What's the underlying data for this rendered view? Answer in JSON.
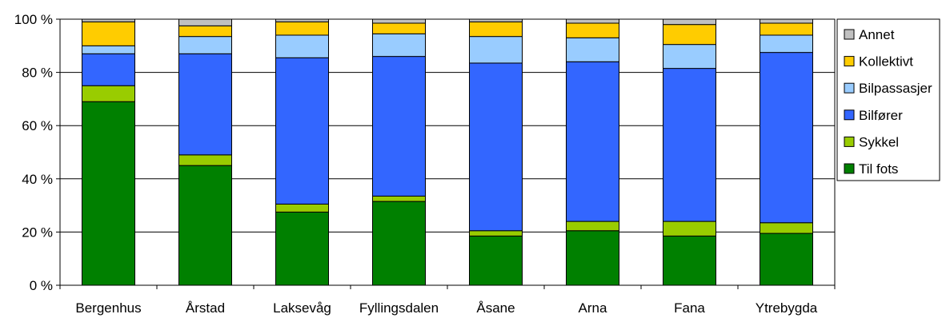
{
  "chart_data": {
    "type": "bar",
    "stacked": true,
    "percent": true,
    "title": "",
    "xlabel": "",
    "ylabel": "",
    "ylim": [
      0,
      100
    ],
    "y_ticks": [
      "0 %",
      "20 %",
      "40 %",
      "60 %",
      "80 %",
      "100 %"
    ],
    "grid": true,
    "legend": {
      "placement": "right"
    },
    "categories": [
      "Bergenhus",
      "Årstad",
      "Laksevåg",
      "Fyllingsdalen",
      "Åsane",
      "Arna",
      "Fana",
      "Ytrebygda"
    ],
    "series": [
      {
        "name": "Til fots",
        "color": "#008000",
        "values": [
          69,
          45,
          27.5,
          31.5,
          18.5,
          20.5,
          18.5,
          19.5
        ]
      },
      {
        "name": "Sykkel",
        "color": "#99cc00",
        "values": [
          6,
          4,
          3,
          2,
          2,
          3.5,
          5.5,
          4
        ]
      },
      {
        "name": "Bilfører",
        "color": "#3366ff",
        "values": [
          12,
          38,
          55,
          52.5,
          63,
          60,
          57.5,
          64
        ]
      },
      {
        "name": "Bilpassasjer",
        "color": "#99ccff",
        "values": [
          3,
          6.5,
          8.5,
          8.5,
          10,
          9,
          9,
          6.5
        ]
      },
      {
        "name": "Kollektivt",
        "color": "#ffcc00",
        "values": [
          9,
          4,
          5,
          4,
          5.5,
          5.5,
          7.5,
          4.5
        ]
      },
      {
        "name": "Annet",
        "color": "#c0c0c0",
        "values": [
          1,
          2.5,
          1,
          1.5,
          1,
          1.5,
          2,
          1.5
        ]
      }
    ]
  }
}
